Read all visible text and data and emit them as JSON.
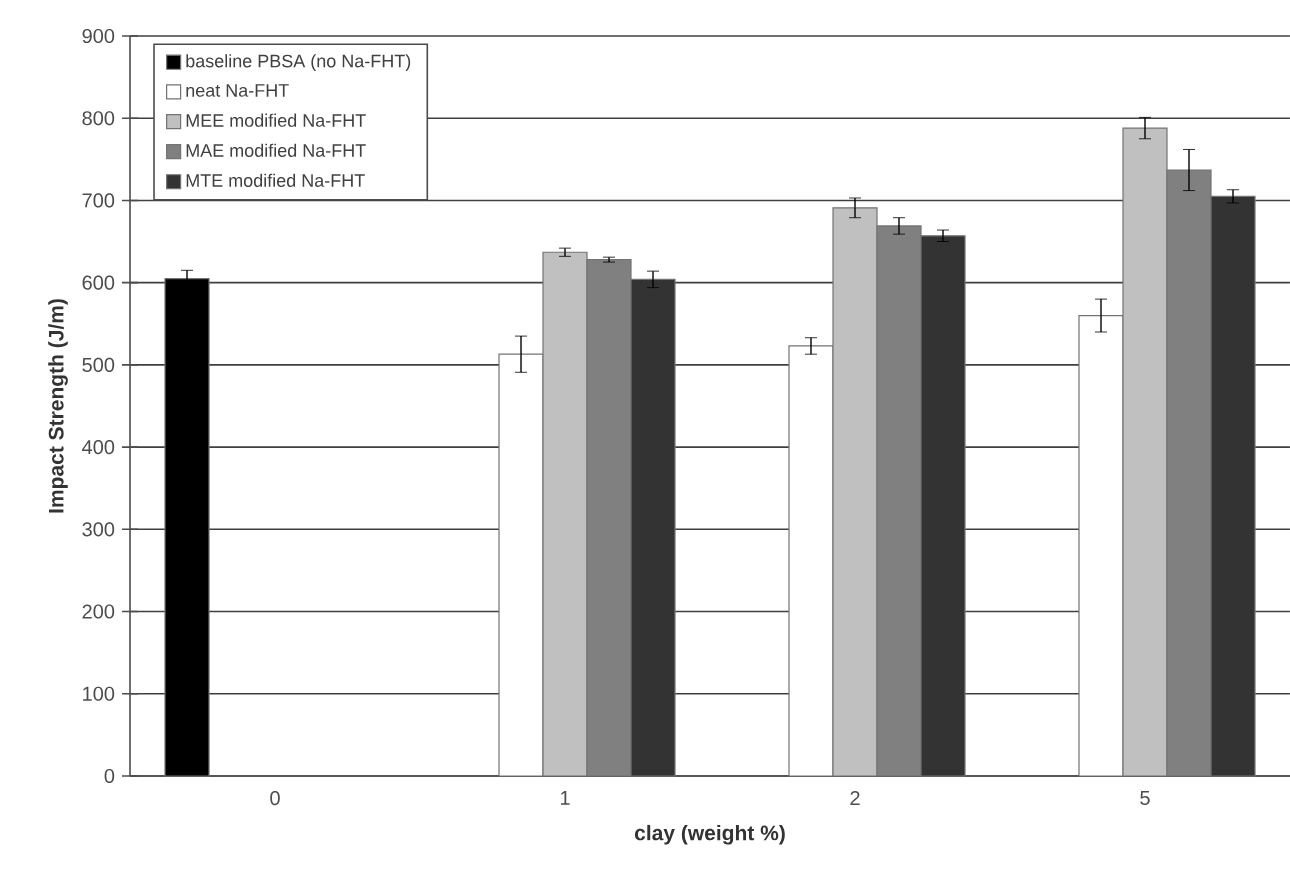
{
  "chart_data": {
    "type": "bar",
    "xlabel": "clay (weight %)",
    "ylabel": "Impact Strength (J/m)",
    "categories": [
      "0",
      "1",
      "2",
      "5"
    ],
    "ylim": [
      0,
      900
    ],
    "yticks": [
      0,
      100,
      200,
      300,
      400,
      500,
      600,
      700,
      800,
      900
    ],
    "grid": "y",
    "legend": "top left",
    "series": [
      {
        "name": "baseline PBSA (no Na-FHT)",
        "color": "#000000",
        "values": [
          605,
          null,
          null,
          null
        ],
        "errors": [
          10,
          null,
          null,
          null
        ]
      },
      {
        "name": "neat Na-FHT",
        "color": "#ffffff",
        "values": [
          null,
          513,
          523,
          560
        ],
        "errors": [
          null,
          22,
          10,
          20
        ]
      },
      {
        "name": "MEE modified Na-FHT",
        "color": "#c0c0c0",
        "values": [
          null,
          637,
          691,
          788
        ],
        "errors": [
          null,
          5,
          12,
          13
        ]
      },
      {
        "name": "MAE modified Na-FHT",
        "color": "#808080",
        "values": [
          null,
          628,
          669,
          737
        ],
        "errors": [
          null,
          3,
          10,
          25
        ]
      },
      {
        "name": "MTE modified Na-FHT",
        "color": "#333333",
        "values": [
          null,
          604,
          657,
          705
        ],
        "errors": [
          null,
          10,
          7,
          8
        ]
      }
    ]
  }
}
